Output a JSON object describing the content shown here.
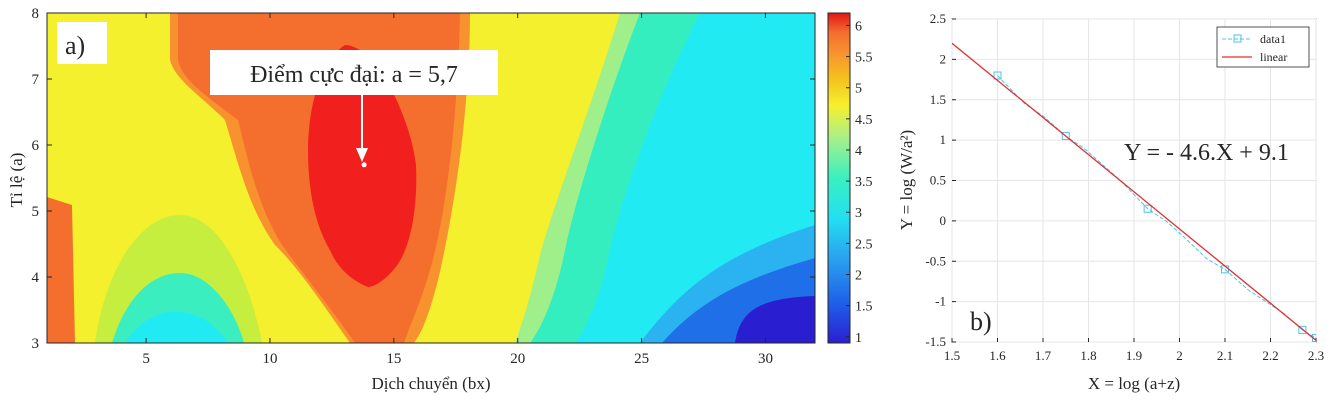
{
  "chart_data": [
    {
      "type": "heatmap",
      "panel_label": "a)",
      "xlabel": "Dịch chuyển (bx)",
      "ylabel": "Tỉ lệ (a)",
      "xlim": [
        1,
        32
      ],
      "ylim": [
        3,
        8
      ],
      "xticks": [
        5,
        10,
        15,
        20,
        25,
        30
      ],
      "yticks": [
        3,
        4,
        5,
        6,
        7,
        8
      ],
      "annotation": "Điểm cực đại: a = 5,7",
      "max_point": {
        "x": 13.8,
        "y": 5.7
      },
      "colorbar": {
        "ticks": [
          "1",
          "1.5",
          "2",
          "2.5",
          "3",
          "3.5",
          "4",
          "4.5",
          "5",
          "5.5",
          "6"
        ],
        "range": [
          0.9,
          6.2
        ]
      },
      "contour_levels": [
        {
          "value": 4.0,
          "color": "#f5f02e"
        },
        {
          "value": 4.6,
          "color": "#f4c21e"
        },
        {
          "value": 5.0,
          "color": "#f7922f"
        },
        {
          "value": 5.3,
          "color": "#f46f2e"
        },
        {
          "value": 5.8,
          "color": "#f21f1f"
        }
      ]
    },
    {
      "type": "line",
      "panel_label": "b)",
      "xlabel": "X = log (a+z)",
      "ylabel": "Y = log (W/a²)",
      "xlim": [
        1.5,
        2.3
      ],
      "ylim": [
        -1.5,
        2.5
      ],
      "xticks": [
        "1.5",
        "1.6",
        "1.7",
        "1.8",
        "1.9",
        "2",
        "2.1",
        "2.2",
        "2.3"
      ],
      "yticks": [
        "-1.5",
        "-1",
        "-0.5",
        "0",
        "0.5",
        "1",
        "1.5",
        "2",
        "2.5"
      ],
      "equation": "Y = - 4.6.X + 9.1",
      "series": [
        {
          "name": "data1",
          "color": "#4fc3e8",
          "x": [
            1.6,
            1.66,
            1.7,
            1.75,
            1.79,
            1.83,
            1.87,
            1.93,
            1.97,
            2.01,
            2.06,
            2.1,
            2.15,
            2.19,
            2.23,
            2.27,
            2.3
          ],
          "y": [
            1.8,
            1.45,
            1.3,
            1.05,
            0.9,
            0.7,
            0.5,
            0.15,
            0.0,
            -0.2,
            -0.47,
            -0.6,
            -0.85,
            -1.0,
            -1.15,
            -1.35,
            -1.45
          ]
        },
        {
          "name": "linear",
          "color": "#e03030",
          "x": [
            1.5,
            2.3
          ],
          "y": [
            2.2,
            -1.48
          ]
        }
      ],
      "legend_position": "top-right"
    }
  ]
}
